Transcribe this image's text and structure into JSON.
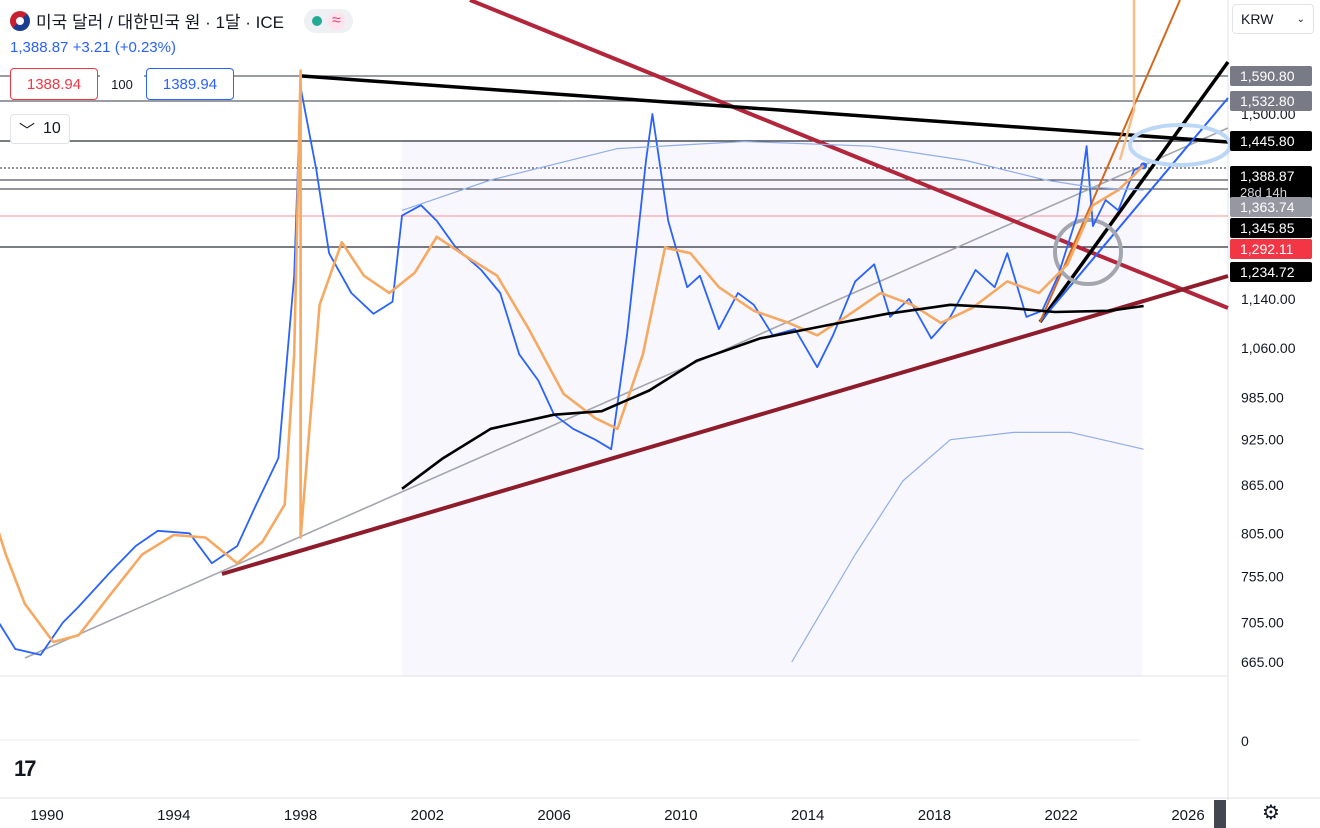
{
  "header": {
    "title": "미국 달러 / 대한민국 원 · 1달 · ICE",
    "last_price": "1,388.87",
    "change": "+3.21",
    "change_pct": "(+0.23%)",
    "sell_price": "1388.94",
    "quantity": "100",
    "buy_price": "1389.94",
    "indicator_count": "10",
    "currency": "KRW",
    "status_color": "#22ab94",
    "wave_icon": "approx-wave-icon"
  },
  "price_axis": {
    "ticks": [
      {
        "label": "1,500.00",
        "value": 1500
      },
      {
        "label": "1,140.00",
        "value": 1140
      },
      {
        "label": "1,060.00",
        "value": 1060
      },
      {
        "label": "985.00",
        "value": 985
      },
      {
        "label": "925.00",
        "value": 925
      },
      {
        "label": "865.00",
        "value": 865
      },
      {
        "label": "805.00",
        "value": 805
      },
      {
        "label": "755.00",
        "value": 755
      },
      {
        "label": "705.00",
        "value": 705
      },
      {
        "label": "665.00",
        "value": 665
      }
    ],
    "price_tags": [
      {
        "label": "1,590.80",
        "value": 1590.8,
        "bg": "#787b86"
      },
      {
        "label": "1,532.80",
        "value": 1532.8,
        "bg": "#787b86"
      },
      {
        "label": "1,445.80",
        "value": 1445.8,
        "bg": "#000000"
      },
      {
        "label": "1,388.87",
        "sub": "28d 14h",
        "value": 1388.87,
        "bg": "#000000"
      },
      {
        "label": "1,363.74",
        "value": 1363.74,
        "bg": "#9598a1"
      },
      {
        "label": "1,345.85",
        "value": 1345.85,
        "bg": "#000000"
      },
      {
        "label": "1,292.11",
        "value": 1292.11,
        "bg": "#f23645"
      },
      {
        "label": "1,234.72",
        "value": 1234.72,
        "bg": "#000000"
      }
    ]
  },
  "volume_axis": {
    "label": "0"
  },
  "chart_data": {
    "type": "line",
    "x_ticks": [
      "1990",
      "1994",
      "1998",
      "2002",
      "2006",
      "2010",
      "2014",
      "2018",
      "2022",
      "2026"
    ],
    "ylim": [
      645,
      1650
    ],
    "scale": "log",
    "series": [
      {
        "points": [
          [
            1988.2,
            720
          ],
          [
            1989.0,
            678
          ],
          [
            1989.8,
            672
          ],
          [
            1990.5,
            705
          ],
          [
            1991.0,
            722
          ],
          [
            1992.0,
            760
          ],
          [
            1992.8,
            790
          ],
          [
            1993.5,
            808
          ],
          [
            1994.5,
            805
          ],
          [
            1995.2,
            770
          ],
          [
            1996.0,
            790
          ],
          [
            1996.6,
            840
          ],
          [
            1997.3,
            900
          ],
          [
            1997.8,
            1180
          ],
          [
            1998.0,
            1560
          ],
          [
            1998.5,
            1380
          ],
          [
            1998.9,
            1220
          ],
          [
            1999.6,
            1150
          ],
          [
            2000.3,
            1115
          ],
          [
            2000.9,
            1135
          ],
          [
            2001.2,
            1290
          ],
          [
            2001.8,
            1310
          ],
          [
            2002.3,
            1280
          ],
          [
            2002.9,
            1230
          ],
          [
            2003.7,
            1190
          ],
          [
            2004.3,
            1150
          ],
          [
            2004.9,
            1050
          ],
          [
            2005.5,
            1010
          ],
          [
            2006.0,
            960
          ],
          [
            2006.6,
            940
          ],
          [
            2007.3,
            925
          ],
          [
            2007.8,
            912
          ],
          [
            2008.3,
            1080
          ],
          [
            2008.9,
            1400
          ],
          [
            2009.1,
            1500
          ],
          [
            2009.6,
            1280
          ],
          [
            2010.2,
            1160
          ],
          [
            2010.6,
            1180
          ],
          [
            2011.2,
            1090
          ],
          [
            2011.8,
            1150
          ],
          [
            2012.3,
            1130
          ],
          [
            2012.9,
            1080
          ],
          [
            2013.6,
            1090
          ],
          [
            2014.3,
            1030
          ],
          [
            2014.8,
            1080
          ],
          [
            2015.5,
            1170
          ],
          [
            2016.1,
            1200
          ],
          [
            2016.6,
            1110
          ],
          [
            2017.2,
            1140
          ],
          [
            2017.9,
            1075
          ],
          [
            2018.5,
            1110
          ],
          [
            2019.3,
            1190
          ],
          [
            2019.9,
            1160
          ],
          [
            2020.3,
            1220
          ],
          [
            2020.9,
            1110
          ],
          [
            2021.4,
            1120
          ],
          [
            2021.9,
            1180
          ],
          [
            2022.5,
            1290
          ],
          [
            2022.8,
            1430
          ],
          [
            2023.0,
            1270
          ],
          [
            2023.4,
            1320
          ],
          [
            2023.8,
            1300
          ],
          [
            2024.3,
            1380
          ],
          [
            2024.6,
            1388.87
          ]
        ]
      },
      {
        "points": [
          [
            1988.2,
            840
          ],
          [
            1988.7,
            780
          ],
          [
            1989.3,
            725
          ],
          [
            1990.2,
            685
          ],
          [
            1991.0,
            692
          ],
          [
            1992.0,
            735
          ],
          [
            1993.0,
            780
          ],
          [
            1994.0,
            803
          ],
          [
            1995.0,
            800
          ],
          [
            1996.0,
            770
          ],
          [
            1996.8,
            795
          ],
          [
            1997.5,
            840
          ],
          [
            1997.8,
            1050
          ],
          [
            1998.0,
            1600
          ],
          [
            1998.0,
            800
          ],
          [
            1998.6,
            1130
          ],
          [
            1999.3,
            1240
          ],
          [
            2000.0,
            1180
          ],
          [
            2000.8,
            1150
          ],
          [
            2001.6,
            1185
          ],
          [
            2002.3,
            1250
          ],
          [
            2003.2,
            1215
          ],
          [
            2004.2,
            1180
          ],
          [
            2005.2,
            1090
          ],
          [
            2006.3,
            990
          ],
          [
            2007.3,
            955
          ],
          [
            2008.0,
            940
          ],
          [
            2008.8,
            1050
          ],
          [
            2009.5,
            1230
          ],
          [
            2010.3,
            1220
          ],
          [
            2011.2,
            1160
          ],
          [
            2012.3,
            1120
          ],
          [
            2013.4,
            1100
          ],
          [
            2014.3,
            1080
          ],
          [
            2015.2,
            1110
          ],
          [
            2016.3,
            1150
          ],
          [
            2017.3,
            1130
          ],
          [
            2018.2,
            1100
          ],
          [
            2019.2,
            1125
          ],
          [
            2020.3,
            1170
          ],
          [
            2021.3,
            1150
          ],
          [
            2022.2,
            1200
          ],
          [
            2023.0,
            1310
          ],
          [
            2023.8,
            1340
          ],
          [
            2024.3,
            1370
          ],
          [
            2024.6,
            1390
          ]
        ]
      },
      {
        "points": [
          [
            2001.2,
            860
          ],
          [
            2002.5,
            900
          ],
          [
            2004.0,
            940
          ],
          [
            2006.0,
            960
          ],
          [
            2007.5,
            965
          ],
          [
            2009.0,
            995
          ],
          [
            2010.5,
            1040
          ],
          [
            2012.5,
            1075
          ],
          [
            2014.5,
            1095
          ],
          [
            2016.5,
            1115
          ],
          [
            2018.5,
            1130
          ],
          [
            2020.3,
            1125
          ],
          [
            2021.8,
            1118
          ],
          [
            2023.5,
            1120
          ],
          [
            2024.6,
            1128
          ]
        ]
      },
      {
        "points": [
          [
            2001.2,
            1300
          ],
          [
            2004.0,
            1360
          ],
          [
            2008.0,
            1425
          ],
          [
            2012.0,
            1440
          ],
          [
            2016.0,
            1430
          ],
          [
            2019.0,
            1400
          ],
          [
            2021.5,
            1360
          ],
          [
            2023.0,
            1345
          ],
          [
            2024.6,
            1340
          ]
        ]
      },
      {
        "points": [
          [
            2013.5,
            665
          ],
          [
            2015.5,
            780
          ],
          [
            2017.0,
            870
          ],
          [
            2018.5,
            925
          ],
          [
            2020.5,
            935
          ],
          [
            2022.3,
            935
          ],
          [
            2024.6,
            912
          ]
        ]
      }
    ]
  }
}
